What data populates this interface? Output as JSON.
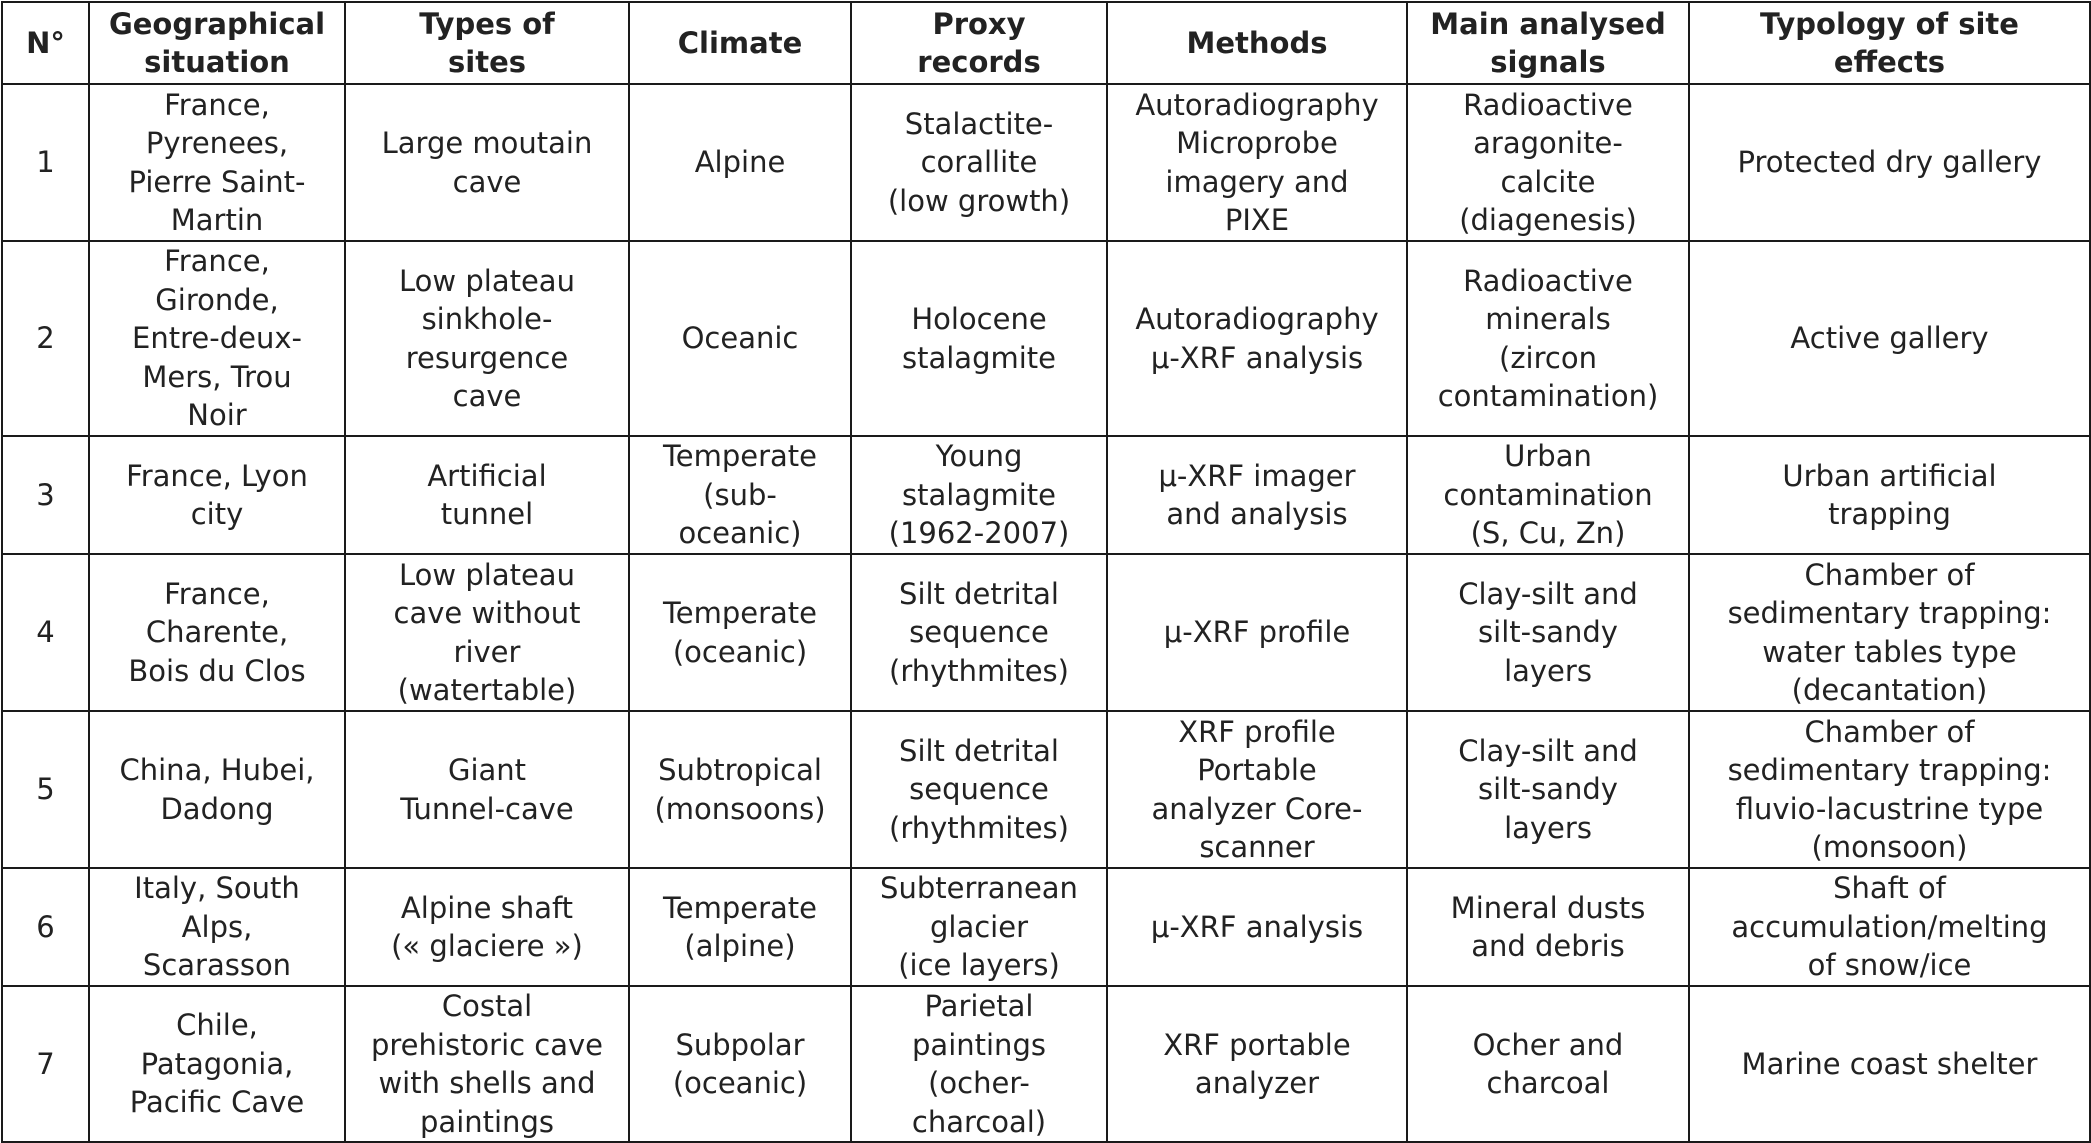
{
  "table": {
    "headers": [
      "N°",
      "Geographical\nsituation",
      "Types of\nsites",
      "Climate",
      "Proxy\nrecords",
      "Methods",
      "Main analysed\nsignals",
      "Typology of site\neffects"
    ],
    "rows": [
      {
        "n": "1",
        "geo": "France,\nPyrenees,\nPierre Saint-\nMartin",
        "type": "Large moutain\ncave",
        "climate": "Alpine",
        "proxy": "Stalactite-\ncorallite\n(low growth)",
        "methods": "Autoradiography\nMicroprobe\nimagery and\nPIXE",
        "signals": "Radioactive\naragonite-\ncalcite\n(diagenesis)",
        "typology": "Protected dry gallery"
      },
      {
        "n": "2",
        "geo": "France,\nGironde,\nEntre-deux-\nMers, Trou\nNoir",
        "type": "Low plateau\nsinkhole-\nresurgence\ncave",
        "climate": "Oceanic",
        "proxy": "Holocene\nstalagmite",
        "methods": "Autoradiography\nμ-XRF analysis",
        "signals": "Radioactive\nminerals\n(zircon\ncontamination)",
        "typology": "Active gallery"
      },
      {
        "n": "3",
        "geo": "France, Lyon\ncity",
        "type": "Artificial\ntunnel",
        "climate": "Temperate\n(sub-\noceanic)",
        "proxy": "Young\nstalagmite\n(1962-2007)",
        "methods": "μ-XRF imager\nand analysis",
        "signals": "Urban\ncontamination\n(S, Cu, Zn)",
        "typology": "Urban artificial\ntrapping"
      },
      {
        "n": "4",
        "geo": "France,\nCharente,\nBois du Clos",
        "type": "Low plateau\ncave without\nriver\n(watertable)",
        "climate": "Temperate\n(oceanic)",
        "proxy": "Silt detrital\nsequence\n(rhythmites)",
        "methods": "μ-XRF profile",
        "signals": "Clay-silt and\nsilt-sandy\nlayers",
        "typology": "Chamber of\nsedimentary trapping:\nwater tables type\n(decantation)"
      },
      {
        "n": "5",
        "geo": "China, Hubei,\nDadong",
        "type": "Giant\nTunnel-cave",
        "climate": "Subtropical\n(monsoons)",
        "proxy": "Silt detrital\nsequence\n(rhythmites)",
        "methods": "XRF profile\nPortable\nanalyzer Core-\nscanner",
        "signals": "Clay-silt and\nsilt-sandy\nlayers",
        "typology": "Chamber of\nsedimentary trapping:\nfluvio-lacustrine type\n(monsoon)"
      },
      {
        "n": "6",
        "geo": "Italy, South\nAlps,\nScarasson",
        "type": "Alpine shaft\n(« glaciere »)",
        "climate": "Temperate\n(alpine)",
        "proxy": "Subterranean\nglacier\n(ice layers)",
        "methods": "μ-XRF analysis",
        "signals": "Mineral dusts\nand debris",
        "typology": "Shaft of\naccumulation/melting\nof snow/ice"
      },
      {
        "n": "7",
        "geo": "Chile,\nPatagonia,\nPacific Cave",
        "type": "Costal\nprehistoric cave\nwith shells and\npaintings",
        "climate": "Subpolar\n(oceanic)",
        "proxy": "Parietal\npaintings\n(ocher-\ncharcoal)",
        "methods": "XRF portable\nanalyzer",
        "signals": "Ocher and\ncharcoal",
        "typology": "Marine coast shelter"
      }
    ]
  }
}
